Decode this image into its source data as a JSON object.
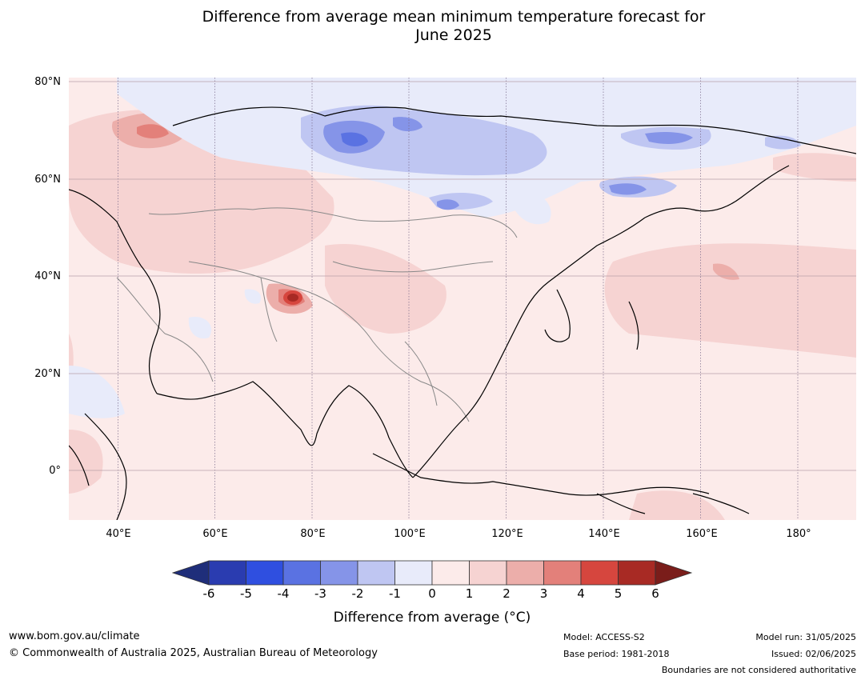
{
  "title_line1": "Difference from average mean minimum temperature forecast for",
  "title_line2": "June 2025",
  "map": {
    "lat_labels": [
      "80°N",
      "60°N",
      "40°N",
      "20°N",
      "0°"
    ],
    "lon_labels": [
      "40°E",
      "60°E",
      "80°E",
      "100°E",
      "120°E",
      "140°E",
      "160°E",
      "180°"
    ],
    "colors": {
      "ocean_background": "#fcebea",
      "coastline": "#000000",
      "borders": "#888888"
    }
  },
  "colorbar": {
    "ticks": [
      "-6",
      "-5",
      "-4",
      "-3",
      "-2",
      "-1",
      "0",
      "1",
      "2",
      "3",
      "4",
      "5",
      "6"
    ],
    "colors": [
      "#1f2e7a",
      "#2a3cb0",
      "#2f4fe0",
      "#5a72e2",
      "#8594e8",
      "#bfc6f2",
      "#e8ebfa",
      "#fcebea",
      "#f6d3d2",
      "#ecaeaa",
      "#e3807a",
      "#d6463e",
      "#a82a24",
      "#7a1d1a"
    ],
    "label": "Difference from average (°C)"
  },
  "footer": {
    "website": "www.bom.gov.au/climate",
    "copyright": "© Commonwealth of Australia 2025, Australian Bureau of Meteorology",
    "model": "Model: ACCESS-S2",
    "base_period": "Base period: 1981-2018",
    "model_run": "Model run: 31/05/2025",
    "issued": "Issued: 02/06/2025",
    "disclaimer": "Boundaries are not considered authoritative"
  }
}
